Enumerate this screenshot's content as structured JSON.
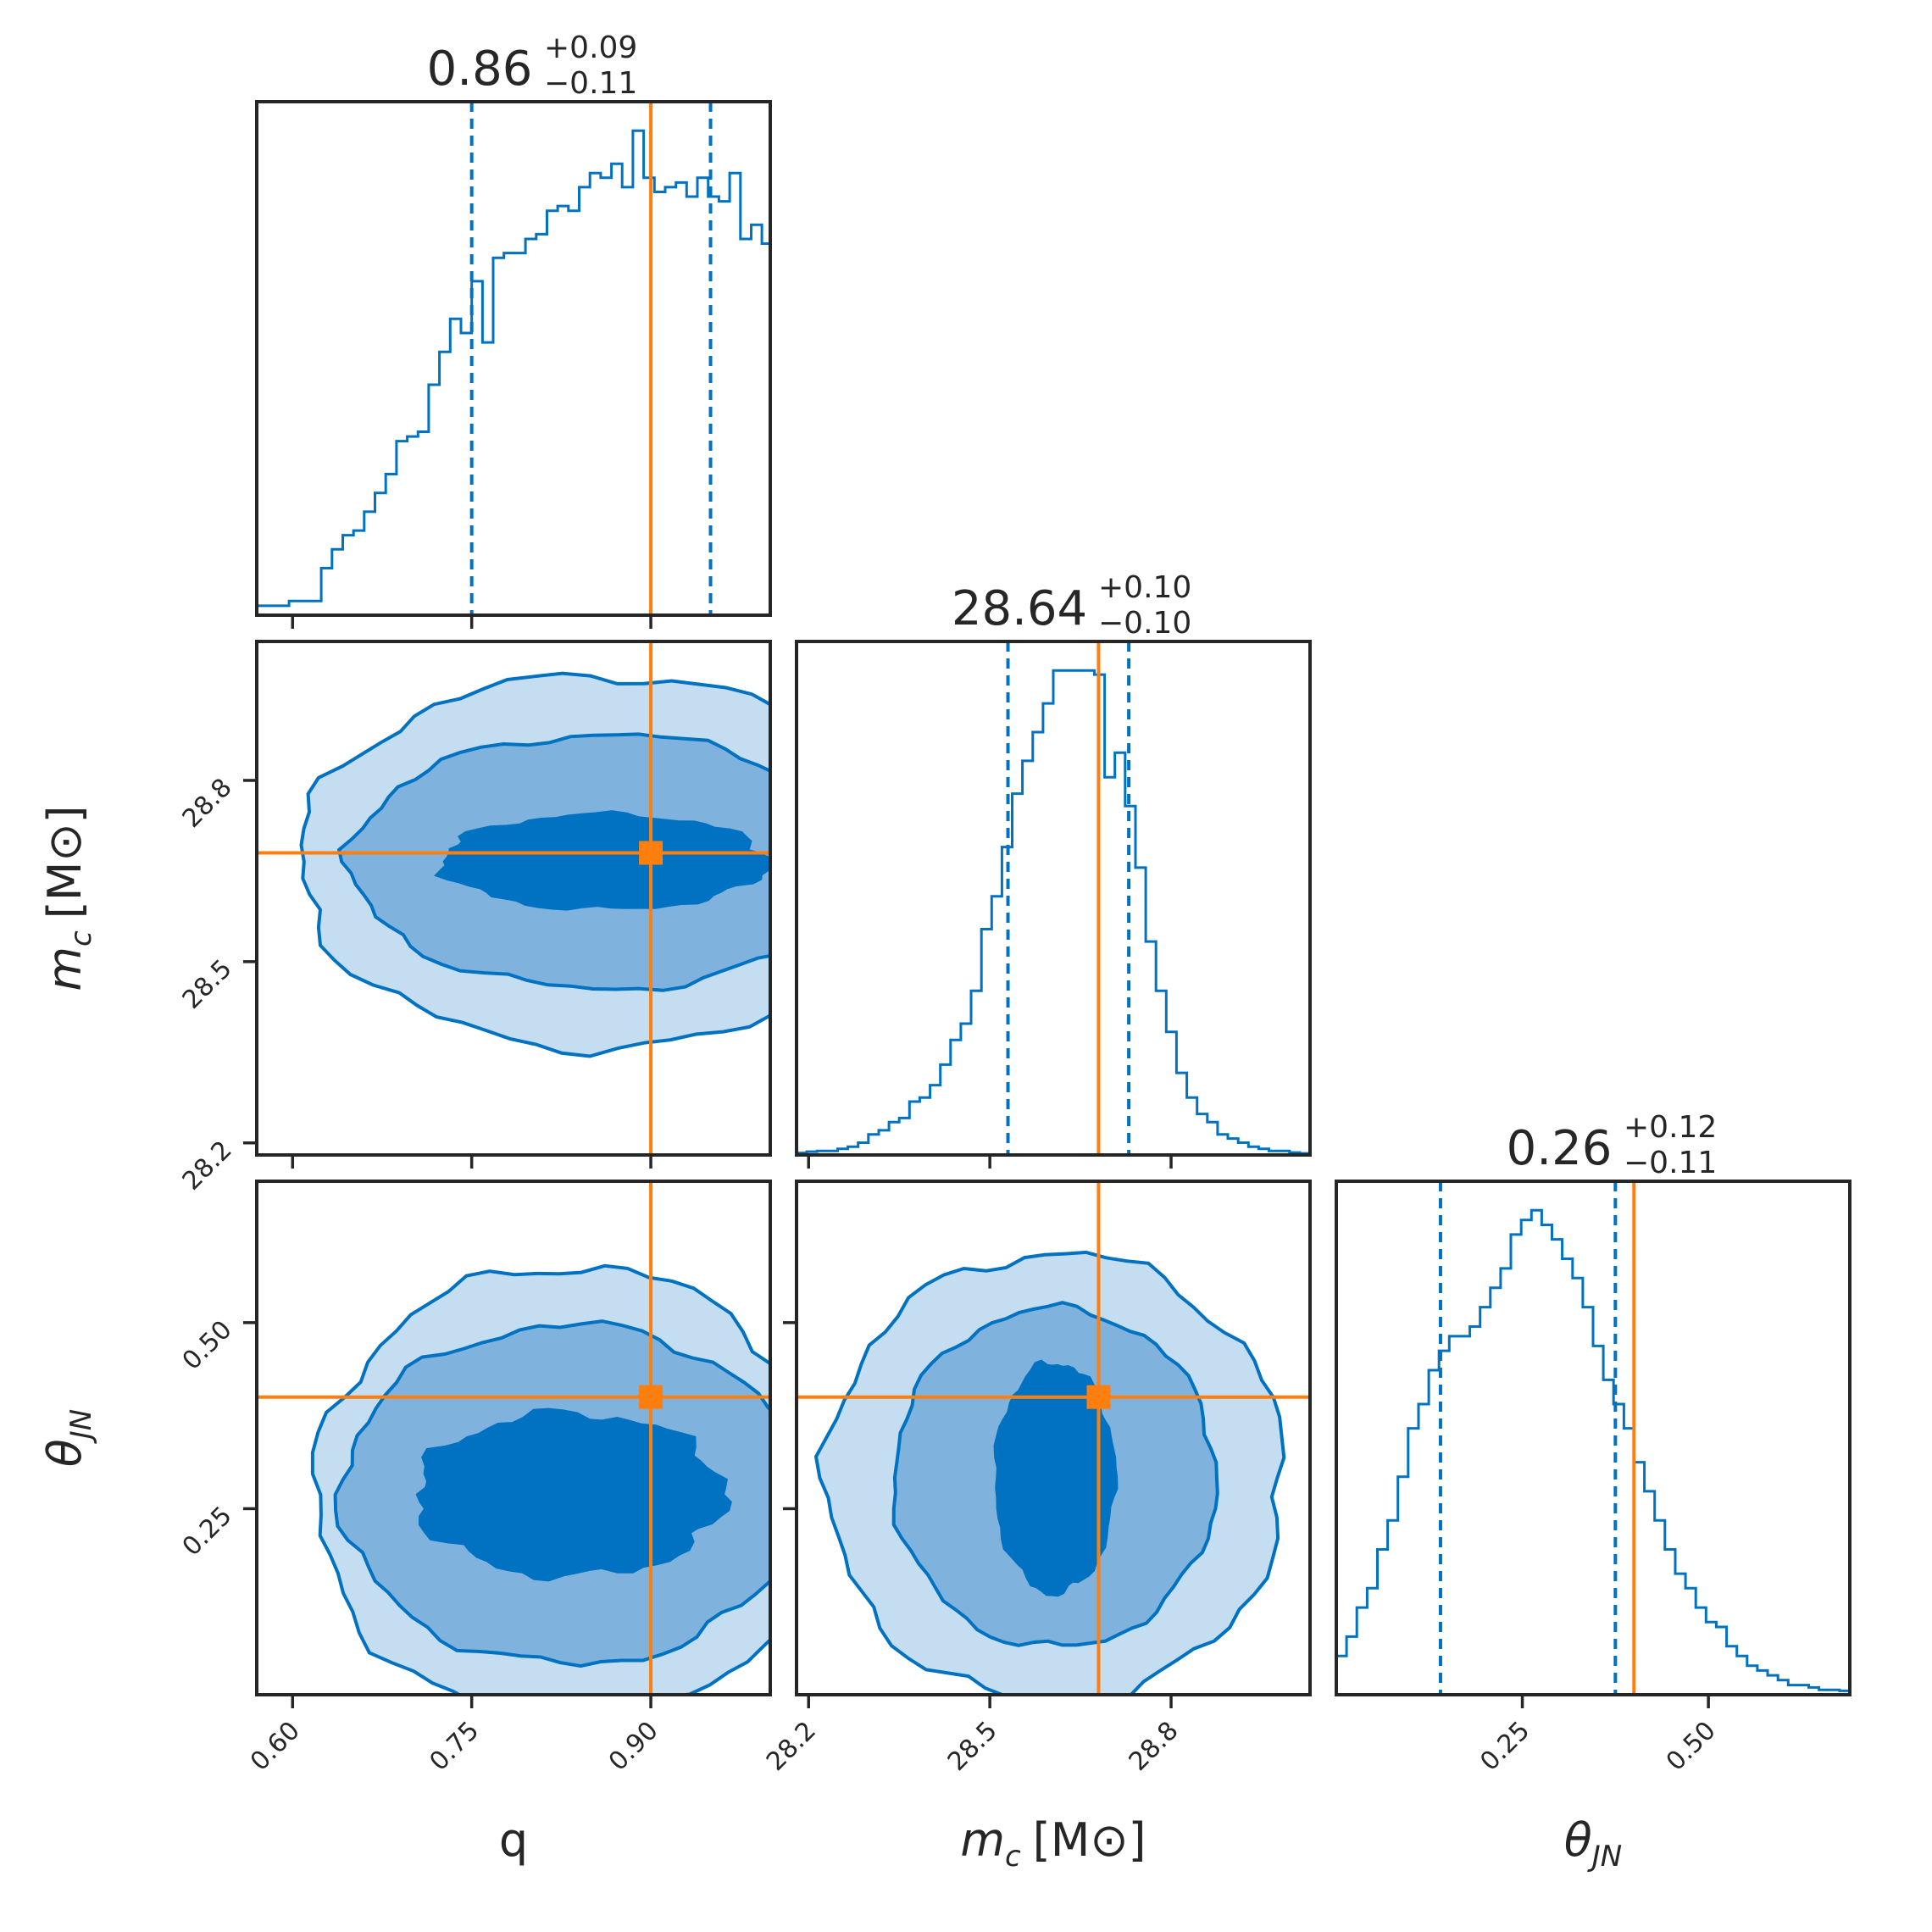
{
  "chart_data": {
    "type": "corner",
    "colors": {
      "posterior": "#0072C1",
      "level_light": "#C5DDF0",
      "level_mid": "#7FB3DE",
      "level_dark": "#0072C1",
      "truth": "#FF7F0E",
      "axes": "#262626"
    },
    "parameters": [
      {
        "name": "q",
        "label_plain": "q",
        "label_main": "q",
        "label_sub": "",
        "label_unit": "",
        "range": [
          0.57,
          1.0
        ],
        "ticks": [
          0.6,
          0.75,
          0.9
        ],
        "tick_labels": [
          "0.60",
          "0.75",
          "0.90"
        ],
        "truth": 0.9,
        "median": 0.86,
        "quantiles": [
          0.75,
          0.95
        ],
        "title_value": "0.86",
        "title_plus": "+0.09",
        "title_minus": "−0.11",
        "hist": {
          "x": [
            0.57,
            0.579,
            0.588,
            0.597,
            0.606,
            0.615,
            0.624,
            0.633,
            0.642,
            0.651,
            0.66,
            0.669,
            0.678,
            0.687,
            0.696,
            0.705,
            0.714,
            0.723,
            0.732,
            0.741,
            0.75,
            0.759,
            0.768,
            0.777,
            0.786,
            0.795,
            0.804,
            0.813,
            0.822,
            0.831,
            0.84,
            0.849,
            0.858,
            0.867,
            0.876,
            0.885,
            0.894,
            0.903,
            0.912,
            0.921,
            0.93,
            0.939,
            0.948,
            0.957,
            0.966,
            0.975,
            0.984,
            0.993
          ],
          "y": [
            2,
            2,
            2,
            3,
            3,
            3,
            10,
            14,
            17,
            18,
            22,
            26,
            30,
            37,
            38,
            39,
            49,
            56,
            63,
            60,
            71,
            58,
            76,
            77,
            77,
            80,
            81,
            86,
            87,
            86,
            91,
            94,
            93,
            96,
            91,
            103,
            93,
            90,
            91,
            92,
            89,
            93,
            89,
            88,
            94,
            80,
            83,
            79
          ]
        }
      },
      {
        "name": "mc",
        "label_plain": "m_c [M_⊙]",
        "label_main": "m",
        "label_sub": "c",
        "label_unit": "[M⊙]",
        "range": [
          28.18,
          29.03
        ],
        "ticks": [
          28.2,
          28.5,
          28.8
        ],
        "tick_labels": [
          "28.2",
          "28.5",
          "28.8"
        ],
        "truth": 28.68,
        "median": 28.64,
        "quantiles": [
          28.53,
          28.73
        ],
        "title_value": "28.64",
        "title_plus": "+0.10",
        "title_minus": "−0.10",
        "hist": {
          "x": [
            28.18,
            28.197,
            28.214,
            28.231,
            28.248,
            28.265,
            28.282,
            28.299,
            28.316,
            28.333,
            28.35,
            28.367,
            28.384,
            28.401,
            28.418,
            28.435,
            28.452,
            28.469,
            28.486,
            28.503,
            28.52,
            28.537,
            28.554,
            28.571,
            28.588,
            28.605,
            28.622,
            28.639,
            28.656,
            28.673,
            28.69,
            28.707,
            28.724,
            28.741,
            28.758,
            28.775,
            28.792,
            28.809,
            28.826,
            28.843,
            28.86,
            28.877,
            28.894,
            28.911,
            28.928,
            28.945,
            28.962,
            28.979,
            28.996,
            29.013
          ],
          "y": [
            0.5,
            0.8,
            1,
            1,
            1.5,
            2,
            3,
            5,
            6,
            8,
            9,
            13,
            14,
            17,
            22,
            28,
            32,
            40,
            55,
            63,
            75,
            88,
            96,
            103,
            110,
            118,
            118,
            118,
            118,
            117,
            92,
            98,
            85,
            70,
            52,
            40,
            30,
            20,
            14,
            10,
            8,
            5,
            4,
            3,
            2,
            1.5,
            1,
            1,
            0.6,
            0.4
          ]
        }
      },
      {
        "name": "theta_jn",
        "label_plain": "θ_JN",
        "label_main": "θ",
        "label_sub": "JN",
        "label_unit": "",
        "range": [
          0.0,
          0.69
        ],
        "ticks": [
          0.25,
          0.5
        ],
        "tick_labels": [
          "0.25",
          "0.50"
        ],
        "truth": 0.4,
        "median": 0.26,
        "quantiles": [
          0.14,
          0.375
        ],
        "title_value": "0.26",
        "title_plus": "+0.12",
        "title_minus": "−0.11",
        "hist": {
          "x": [
            0.0,
            0.0138,
            0.0276,
            0.0414,
            0.0552,
            0.069,
            0.0828,
            0.0966,
            0.1104,
            0.1242,
            0.138,
            0.1518,
            0.1656,
            0.1794,
            0.1932,
            0.207,
            0.2208,
            0.2346,
            0.2484,
            0.2622,
            0.276,
            0.2898,
            0.3036,
            0.3174,
            0.3312,
            0.345,
            0.3588,
            0.3726,
            0.3864,
            0.4002,
            0.414,
            0.4278,
            0.4416,
            0.4554,
            0.4692,
            0.483,
            0.4968,
            0.5106,
            0.5244,
            0.5382,
            0.552,
            0.5658,
            0.5796,
            0.5934,
            0.6072,
            0.621,
            0.6348,
            0.6486,
            0.6624,
            0.6762
          ],
          "y": [
            8,
            12,
            18,
            22,
            30,
            36,
            45,
            55,
            60,
            67,
            71,
            74,
            74,
            76,
            80,
            84,
            88,
            95,
            98,
            100,
            97,
            94,
            90,
            86,
            80,
            72,
            65,
            60,
            55,
            48,
            42,
            36,
            30,
            25,
            22,
            18,
            15,
            14,
            10,
            8,
            6,
            5,
            4,
            3,
            2,
            2,
            1.5,
            1,
            1,
            0.8
          ]
        }
      }
    ]
  }
}
